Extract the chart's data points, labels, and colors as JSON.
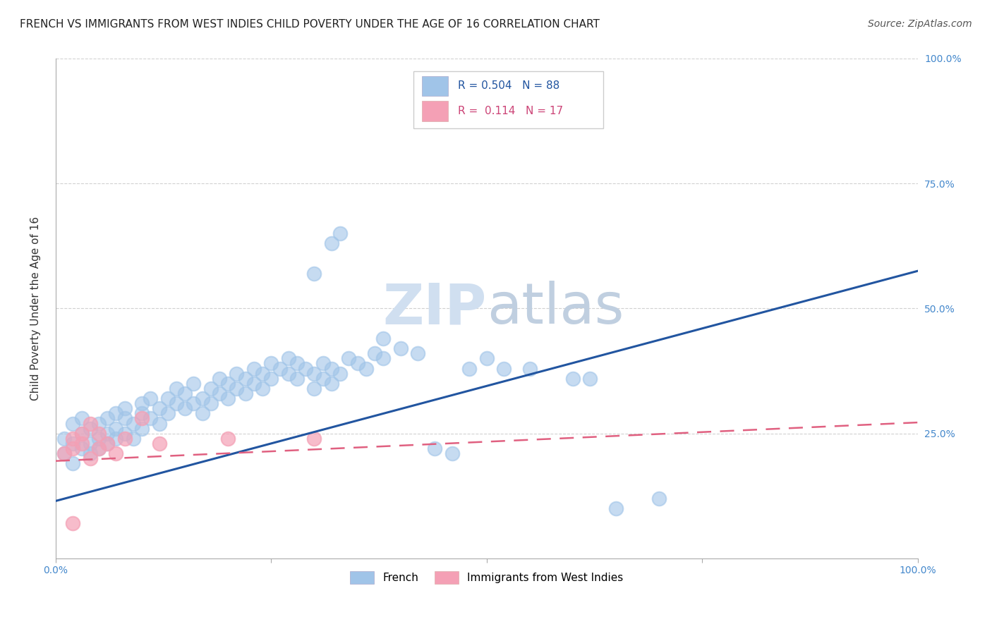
{
  "title": "FRENCH VS IMMIGRANTS FROM WEST INDIES CHILD POVERTY UNDER THE AGE OF 16 CORRELATION CHART",
  "source": "Source: ZipAtlas.com",
  "ylabel": "Child Poverty Under the Age of 16",
  "xlim": [
    0,
    1.0
  ],
  "ylim": [
    0,
    1.0
  ],
  "ytick_labels": [
    "25.0%",
    "50.0%",
    "75.0%",
    "100.0%"
  ],
  "ytick_positions": [
    0.25,
    0.5,
    0.75,
    1.0
  ],
  "blue_scatter": [
    [
      0.01,
      0.21
    ],
    [
      0.01,
      0.24
    ],
    [
      0.02,
      0.27
    ],
    [
      0.02,
      0.23
    ],
    [
      0.02,
      0.19
    ],
    [
      0.03,
      0.25
    ],
    [
      0.03,
      0.22
    ],
    [
      0.03,
      0.28
    ],
    [
      0.04,
      0.21
    ],
    [
      0.04,
      0.26
    ],
    [
      0.04,
      0.23
    ],
    [
      0.05,
      0.24
    ],
    [
      0.05,
      0.22
    ],
    [
      0.05,
      0.27
    ],
    [
      0.06,
      0.25
    ],
    [
      0.06,
      0.28
    ],
    [
      0.06,
      0.23
    ],
    [
      0.07,
      0.26
    ],
    [
      0.07,
      0.29
    ],
    [
      0.07,
      0.24
    ],
    [
      0.08,
      0.28
    ],
    [
      0.08,
      0.25
    ],
    [
      0.08,
      0.3
    ],
    [
      0.09,
      0.27
    ],
    [
      0.09,
      0.24
    ],
    [
      0.1,
      0.29
    ],
    [
      0.1,
      0.26
    ],
    [
      0.1,
      0.31
    ],
    [
      0.11,
      0.28
    ],
    [
      0.11,
      0.32
    ],
    [
      0.12,
      0.3
    ],
    [
      0.12,
      0.27
    ],
    [
      0.13,
      0.32
    ],
    [
      0.13,
      0.29
    ],
    [
      0.14,
      0.31
    ],
    [
      0.14,
      0.34
    ],
    [
      0.15,
      0.3
    ],
    [
      0.15,
      0.33
    ],
    [
      0.16,
      0.31
    ],
    [
      0.16,
      0.35
    ],
    [
      0.17,
      0.32
    ],
    [
      0.17,
      0.29
    ],
    [
      0.18,
      0.34
    ],
    [
      0.18,
      0.31
    ],
    [
      0.19,
      0.33
    ],
    [
      0.19,
      0.36
    ],
    [
      0.2,
      0.35
    ],
    [
      0.2,
      0.32
    ],
    [
      0.21,
      0.34
    ],
    [
      0.21,
      0.37
    ],
    [
      0.22,
      0.36
    ],
    [
      0.22,
      0.33
    ],
    [
      0.23,
      0.35
    ],
    [
      0.23,
      0.38
    ],
    [
      0.24,
      0.37
    ],
    [
      0.24,
      0.34
    ],
    [
      0.25,
      0.36
    ],
    [
      0.25,
      0.39
    ],
    [
      0.26,
      0.38
    ],
    [
      0.27,
      0.37
    ],
    [
      0.27,
      0.4
    ],
    [
      0.28,
      0.39
    ],
    [
      0.28,
      0.36
    ],
    [
      0.29,
      0.38
    ],
    [
      0.3,
      0.37
    ],
    [
      0.3,
      0.34
    ],
    [
      0.31,
      0.36
    ],
    [
      0.31,
      0.39
    ],
    [
      0.32,
      0.38
    ],
    [
      0.32,
      0.35
    ],
    [
      0.33,
      0.37
    ],
    [
      0.34,
      0.4
    ],
    [
      0.35,
      0.39
    ],
    [
      0.36,
      0.38
    ],
    [
      0.37,
      0.41
    ],
    [
      0.38,
      0.4
    ],
    [
      0.4,
      0.42
    ],
    [
      0.42,
      0.41
    ],
    [
      0.44,
      0.22
    ],
    [
      0.46,
      0.21
    ],
    [
      0.48,
      0.38
    ],
    [
      0.5,
      0.4
    ],
    [
      0.52,
      0.38
    ],
    [
      0.55,
      0.38
    ],
    [
      0.6,
      0.36
    ],
    [
      0.62,
      0.36
    ],
    [
      0.65,
      0.1
    ],
    [
      0.7,
      0.12
    ],
    [
      0.3,
      0.57
    ],
    [
      0.32,
      0.63
    ],
    [
      0.33,
      0.65
    ],
    [
      0.38,
      0.44
    ]
  ],
  "pink_scatter": [
    [
      0.01,
      0.21
    ],
    [
      0.02,
      0.24
    ],
    [
      0.02,
      0.22
    ],
    [
      0.03,
      0.25
    ],
    [
      0.03,
      0.23
    ],
    [
      0.04,
      0.2
    ],
    [
      0.04,
      0.27
    ],
    [
      0.05,
      0.22
    ],
    [
      0.05,
      0.25
    ],
    [
      0.06,
      0.23
    ],
    [
      0.07,
      0.21
    ],
    [
      0.08,
      0.24
    ],
    [
      0.1,
      0.28
    ],
    [
      0.12,
      0.23
    ],
    [
      0.2,
      0.24
    ],
    [
      0.3,
      0.24
    ],
    [
      0.02,
      0.07
    ]
  ],
  "blue_line_y_start": 0.115,
  "blue_line_y_end": 0.575,
  "pink_line_y_start": 0.195,
  "pink_line_y_end": 0.272,
  "title_fontsize": 11,
  "source_fontsize": 10,
  "axis_label_fontsize": 11,
  "tick_fontsize": 10,
  "scatter_size": 200,
  "blue_color": "#a0c4e8",
  "pink_color": "#f4a0b5",
  "blue_line_color": "#2255a0",
  "pink_line_color": "#e06080",
  "grid_color": "#cccccc",
  "watermark_zip_color": "#d0dff0",
  "watermark_atlas_color": "#c0cfe0",
  "watermark_fontsize": 58
}
